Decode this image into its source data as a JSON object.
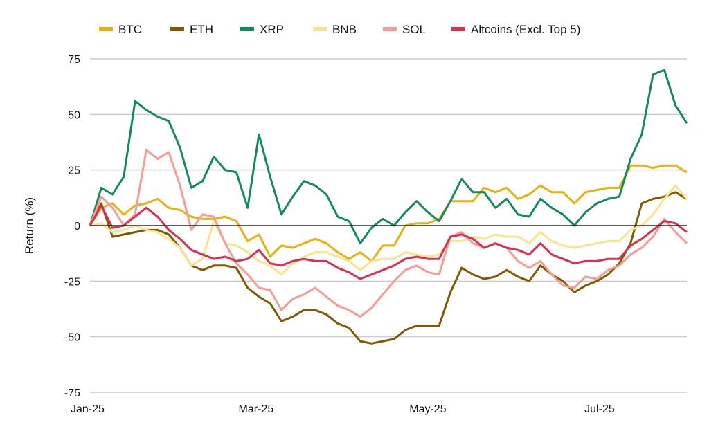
{
  "chart_data": {
    "type": "line",
    "title": "",
    "xlabel": "",
    "ylabel": "Return (%)",
    "ylim": [
      -75,
      75
    ],
    "yticks": [
      75,
      50,
      25,
      0,
      -25,
      -50,
      -75
    ],
    "xtick_labels": [
      {
        "label": "Jan-25",
        "date": "2025-01-01"
      },
      {
        "label": "Mar-25",
        "date": "2025-03-01"
      },
      {
        "label": "May-25",
        "date": "2025-05-01"
      },
      {
        "label": "Jul-25",
        "date": "2025-07-01"
      }
    ],
    "xlim": [
      "2025-01-01",
      "2025-08-01"
    ],
    "grid": "horizontal",
    "zero_line": true,
    "legend_position": "top",
    "x": [
      "2025-01-01",
      "2025-01-05",
      "2025-01-09",
      "2025-01-13",
      "2025-01-17",
      "2025-01-21",
      "2025-01-25",
      "2025-01-29",
      "2025-02-02",
      "2025-02-06",
      "2025-02-10",
      "2025-02-14",
      "2025-02-18",
      "2025-02-22",
      "2025-02-26",
      "2025-03-02",
      "2025-03-06",
      "2025-03-10",
      "2025-03-14",
      "2025-03-18",
      "2025-03-22",
      "2025-03-26",
      "2025-03-30",
      "2025-04-03",
      "2025-04-07",
      "2025-04-11",
      "2025-04-15",
      "2025-04-19",
      "2025-04-23",
      "2025-04-27",
      "2025-05-01",
      "2025-05-05",
      "2025-05-09",
      "2025-05-13",
      "2025-05-17",
      "2025-05-21",
      "2025-05-25",
      "2025-05-29",
      "2025-06-02",
      "2025-06-06",
      "2025-06-10",
      "2025-06-14",
      "2025-06-18",
      "2025-06-22",
      "2025-06-26",
      "2025-06-30",
      "2025-07-04",
      "2025-07-08",
      "2025-07-12",
      "2025-07-16",
      "2025-07-20",
      "2025-07-24",
      "2025-07-28",
      "2025-08-01"
    ],
    "series": [
      {
        "name": "BTC",
        "color": "#E8B10A",
        "values": [
          0,
          8,
          10,
          5,
          9,
          10,
          12,
          8,
          7,
          4,
          3,
          3,
          4,
          2,
          -7,
          -4,
          -14,
          -9,
          -10,
          -8,
          -6,
          -8,
          -12,
          -15,
          -12,
          -16,
          -9,
          -9,
          0,
          1,
          1,
          3,
          11,
          11,
          11,
          17,
          15,
          17,
          12,
          14,
          18,
          15,
          15,
          10,
          15,
          16,
          17,
          17,
          27,
          27,
          26,
          27,
          27,
          24
        ]
      },
      {
        "name": "ETH",
        "color": "#7F5A00",
        "values": [
          0,
          10,
          -5,
          -4,
          -3,
          -2,
          -2,
          -4,
          -10,
          -18,
          -20,
          -18,
          -18,
          -19,
          -28,
          -32,
          -35,
          -43,
          -41,
          -38,
          -38,
          -40,
          -44,
          -46,
          -52,
          -53,
          -52,
          -51,
          -47,
          -45,
          -45,
          -45,
          -30,
          -19,
          -22,
          -24,
          -23,
          -20,
          -23,
          -25,
          -18,
          -22,
          -25,
          -30,
          -27,
          -25,
          -22,
          -17,
          -8,
          10,
          12,
          13,
          15,
          12
        ]
      },
      {
        "name": "XRP",
        "color": "#128A5E",
        "values": [
          0,
          17,
          14,
          22,
          56,
          52,
          49,
          47,
          35,
          17,
          20,
          31,
          25,
          24,
          8,
          41,
          22,
          5,
          13,
          20,
          18,
          14,
          4,
          2,
          -8,
          -1,
          3,
          0,
          6,
          11,
          6,
          2,
          11,
          21,
          15,
          15,
          8,
          12,
          5,
          4,
          12,
          8,
          5,
          0,
          6,
          10,
          12,
          13,
          30,
          41,
          68,
          70,
          54,
          46
        ]
      },
      {
        "name": "BNB",
        "color": "#F8E38E",
        "values": [
          0,
          1,
          -3,
          -2,
          0,
          -2,
          -3,
          -6,
          -10,
          -18,
          -15,
          2,
          -8,
          -9,
          -12,
          -16,
          -18,
          -22,
          -17,
          -14,
          -12,
          -12,
          -14,
          -16,
          -20,
          -16,
          -15,
          -15,
          -12,
          -13,
          -14,
          -13,
          -7,
          -7,
          -5,
          -6,
          -4,
          -5,
          -5,
          -8,
          -3,
          -7,
          -9,
          -10,
          -9,
          -8,
          -7,
          -7,
          -2,
          0,
          5,
          12,
          18,
          12
        ]
      },
      {
        "name": "SOL",
        "color": "#F79C95",
        "values": [
          0,
          13,
          8,
          0,
          5,
          34,
          30,
          33,
          18,
          -2,
          5,
          4,
          -8,
          -17,
          -22,
          -28,
          -29,
          -38,
          -33,
          -31,
          -28,
          -32,
          -36,
          -38,
          -41,
          -37,
          -31,
          -25,
          -20,
          -18,
          -21,
          -22,
          -5,
          -3,
          -8,
          -10,
          -8,
          -10,
          -16,
          -19,
          -16,
          -22,
          -27,
          -28,
          -23,
          -24,
          -20,
          -18,
          -13,
          -10,
          -5,
          3,
          -3,
          -8
        ]
      },
      {
        "name": "Altcoins (Excl. Top 5)",
        "color": "#D9304F",
        "values": [
          0,
          9,
          -1,
          0,
          4,
          8,
          4,
          -2,
          -6,
          -11,
          -13,
          -15,
          -14,
          -16,
          -15,
          -11,
          -17,
          -18,
          -16,
          -15,
          -16,
          -16,
          -19,
          -21,
          -24,
          -22,
          -20,
          -18,
          -15,
          -14,
          -15,
          -15,
          -5,
          -4,
          -6,
          -10,
          -8,
          -10,
          -11,
          -13,
          -8,
          -13,
          -15,
          -17,
          -16,
          -16,
          -15,
          -15,
          -9,
          -6,
          -2,
          2,
          1,
          -3
        ]
      }
    ]
  }
}
